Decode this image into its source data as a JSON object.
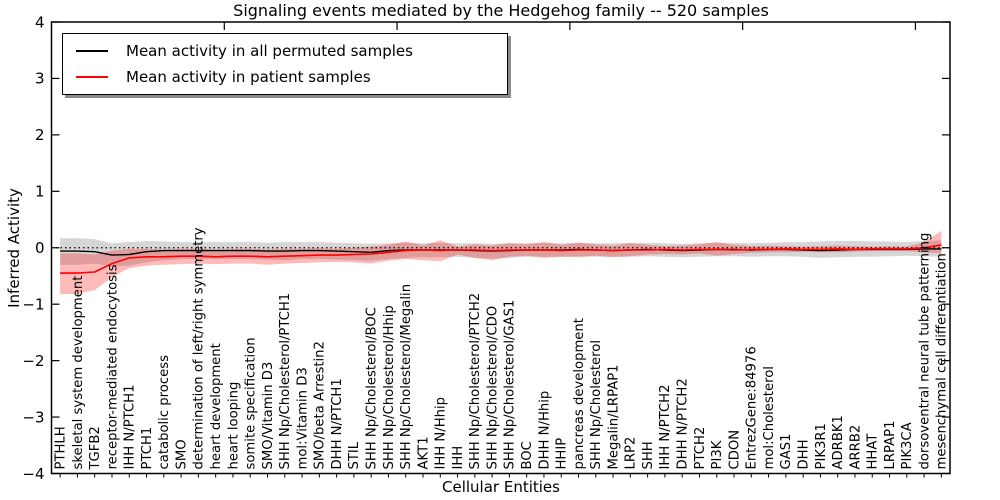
{
  "figure": {
    "title": "Signaling events mediated by the Hedgehog family -- 520 samples",
    "xlabel": "Cellular Entities",
    "ylabel": "Inferred Activity"
  },
  "chart_data": {
    "type": "line",
    "title": "Signaling events mediated by the Hedgehog family -- 520 samples",
    "xlabel": "Cellular Entities",
    "ylabel": "Inferred Activity",
    "ylim": [
      -4,
      4
    ],
    "yticks": [
      4,
      3,
      2,
      1,
      0,
      -1,
      -2,
      -3,
      -4
    ],
    "ytick_labels": [
      "4",
      "3",
      "2",
      "1",
      "0",
      "−1",
      "−2",
      "−3",
      "−4"
    ],
    "x_major_ticks": [
      10,
      20,
      30,
      40,
      50
    ],
    "grid": "off",
    "zero_line": {
      "y": 0,
      "style": "dotted",
      "color": "#000000"
    },
    "legend_position": "upper left",
    "categories": [
      "PTHLH",
      "skeletal system development",
      "TGFB2",
      "receptor-mediated endocytosis",
      "IHH N/PTCH1",
      "PTCH1",
      "catabolic process",
      "SMO",
      "determination of left/right symmetry",
      "heart development",
      "heart looping",
      "somite specification",
      "SMO/Vitamin D3",
      "SHH Np/Cholesterol/PTCH1",
      "mol:Vitamin D3",
      "SMO/beta Arrestin2",
      "DHH N/PTCH1",
      "STIL",
      "SHH Np/Cholesterol/BOC",
      "SHH Np/Cholesterol/Hhip",
      "SHH Np/Cholesterol/Megalin",
      "AKT1",
      "IHH N/Hhip",
      "IHH",
      "SHH Np/Cholesterol/PTCH2",
      "SHH Np/Cholesterol/CDO",
      "SHH Np/Cholesterol/GAS1",
      "BOC",
      "DHH N/Hhip",
      "HHIP",
      "pancreas development",
      "SHH Np/Cholesterol",
      "Megalin/LRPAP1",
      "LRP2",
      "SHH",
      "IHH N/PTCH2",
      "DHH N/PTCH2",
      "PTCH2",
      "PI3K",
      "CDON",
      "EntrezGene:84976",
      "mol:Cholesterol",
      "GAS1",
      "DHH",
      "PIK3R1",
      "ADRBK1",
      "ARRB2",
      "HHAT",
      "LRPAP1",
      "PIK3CA",
      "dorsoventral neural tube patterning",
      "mesenchymal cell differentiation"
    ],
    "series": [
      {
        "name": "Mean activity in all permuted samples",
        "color": "#000000",
        "band_color": "rgba(0,0,0,0.16)",
        "values": [
          -0.06,
          -0.06,
          -0.07,
          -0.13,
          -0.12,
          -0.07,
          -0.05,
          -0.05,
          -0.05,
          -0.05,
          -0.05,
          -0.05,
          -0.06,
          -0.06,
          -0.05,
          -0.05,
          -0.06,
          -0.07,
          -0.08,
          -0.05,
          -0.04,
          -0.04,
          -0.04,
          -0.04,
          -0.05,
          -0.06,
          -0.05,
          -0.04,
          -0.04,
          -0.04,
          -0.03,
          -0.04,
          -0.05,
          -0.04,
          -0.03,
          -0.04,
          -0.05,
          -0.04,
          -0.03,
          -0.03,
          -0.04,
          -0.03,
          -0.03,
          -0.04,
          -0.05,
          -0.04,
          -0.03,
          -0.03,
          -0.03,
          -0.03,
          -0.02,
          -0.02
        ],
        "band_hi": [
          0.17,
          0.17,
          0.15,
          0.08,
          0.1,
          0.12,
          0.11,
          0.1,
          0.1,
          0.1,
          0.1,
          0.1,
          0.09,
          0.1,
          0.1,
          0.1,
          0.09,
          0.08,
          0.07,
          0.08,
          0.09,
          0.08,
          0.09,
          0.08,
          0.08,
          0.07,
          0.08,
          0.08,
          0.09,
          0.08,
          0.09,
          0.08,
          0.08,
          0.09,
          0.09,
          0.08,
          0.07,
          0.08,
          0.09,
          0.09,
          0.08,
          0.09,
          0.1,
          0.1,
          0.11,
          0.12,
          0.12,
          0.11,
          0.11,
          0.1,
          0.12,
          0.13
        ],
        "band_lo": [
          -0.3,
          -0.3,
          -0.28,
          -0.33,
          -0.32,
          -0.26,
          -0.22,
          -0.2,
          -0.2,
          -0.2,
          -0.2,
          -0.2,
          -0.21,
          -0.22,
          -0.2,
          -0.2,
          -0.21,
          -0.22,
          -0.23,
          -0.2,
          -0.18,
          -0.17,
          -0.17,
          -0.16,
          -0.18,
          -0.19,
          -0.18,
          -0.16,
          -0.16,
          -0.16,
          -0.15,
          -0.16,
          -0.17,
          -0.16,
          -0.15,
          -0.16,
          -0.17,
          -0.16,
          -0.15,
          -0.15,
          -0.16,
          -0.15,
          -0.15,
          -0.16,
          -0.18,
          -0.17,
          -0.16,
          -0.16,
          -0.15,
          -0.14,
          -0.15,
          -0.16
        ]
      },
      {
        "name": "Mean activity in patient samples",
        "color": "#ff0000",
        "band_color": "rgba(255,0,0,0.27)",
        "values": [
          -0.45,
          -0.45,
          -0.43,
          -0.28,
          -0.18,
          -0.16,
          -0.16,
          -0.15,
          -0.15,
          -0.16,
          -0.15,
          -0.15,
          -0.16,
          -0.15,
          -0.14,
          -0.13,
          -0.13,
          -0.12,
          -0.11,
          -0.08,
          -0.05,
          -0.04,
          -0.05,
          -0.04,
          -0.04,
          -0.05,
          -0.04,
          -0.04,
          -0.04,
          -0.05,
          -0.04,
          -0.04,
          -0.05,
          -0.04,
          -0.04,
          -0.03,
          -0.04,
          -0.03,
          -0.03,
          -0.04,
          -0.03,
          -0.03,
          -0.02,
          -0.03,
          -0.03,
          -0.02,
          -0.03,
          -0.02,
          -0.02,
          -0.02,
          0.0,
          0.05
        ],
        "band_hi": [
          -0.1,
          -0.1,
          -0.12,
          -0.05,
          -0.02,
          -0.02,
          -0.03,
          -0.02,
          -0.02,
          -0.03,
          -0.02,
          -0.02,
          -0.03,
          -0.02,
          -0.02,
          -0.01,
          -0.02,
          0.0,
          0.02,
          0.05,
          0.11,
          0.04,
          0.13,
          0.02,
          0.06,
          0.04,
          0.08,
          0.06,
          0.1,
          0.05,
          0.09,
          0.06,
          0.04,
          0.08,
          0.05,
          0.03,
          0.04,
          0.06,
          0.1,
          0.05,
          0.03,
          0.04,
          0.03,
          0.02,
          0.03,
          0.04,
          0.03,
          0.02,
          0.03,
          0.02,
          0.1,
          0.3
        ],
        "band_lo": [
          -0.82,
          -0.82,
          -0.75,
          -0.52,
          -0.36,
          -0.32,
          -0.3,
          -0.29,
          -0.28,
          -0.29,
          -0.28,
          -0.28,
          -0.3,
          -0.28,
          -0.27,
          -0.26,
          -0.25,
          -0.26,
          -0.28,
          -0.23,
          -0.2,
          -0.22,
          -0.24,
          -0.12,
          -0.18,
          -0.22,
          -0.16,
          -0.14,
          -0.18,
          -0.16,
          -0.17,
          -0.14,
          -0.16,
          -0.15,
          -0.12,
          -0.11,
          -0.12,
          -0.1,
          -0.14,
          -0.11,
          -0.09,
          -0.08,
          -0.08,
          -0.07,
          -0.08,
          -0.08,
          -0.07,
          -0.06,
          -0.06,
          -0.06,
          -0.08,
          -0.1
        ]
      }
    ]
  }
}
